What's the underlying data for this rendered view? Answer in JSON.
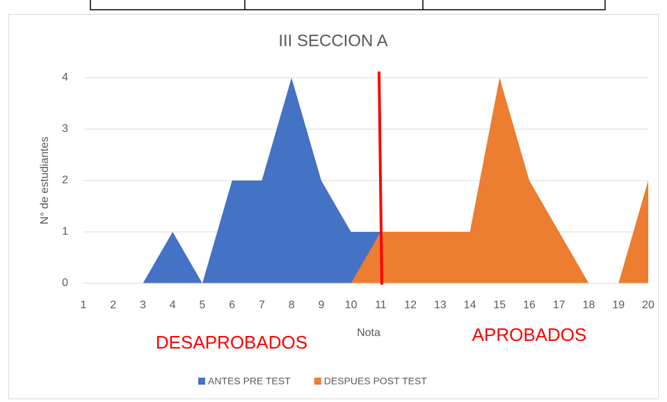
{
  "chart_data": {
    "type": "area",
    "title": "III SECCION A",
    "x_label": "Nota",
    "y_label": "N° de estudiantes",
    "categories": [
      1,
      2,
      3,
      4,
      5,
      6,
      7,
      8,
      9,
      10,
      11,
      12,
      13,
      14,
      15,
      16,
      17,
      18,
      19,
      20
    ],
    "series": [
      {
        "name": "ANTES PRE TEST",
        "color": "#4472c4",
        "values": [
          0,
          0,
          0,
          1,
          0,
          2,
          2,
          4,
          2,
          1,
          1,
          0,
          0,
          0,
          0,
          0,
          0,
          0,
          0,
          0
        ]
      },
      {
        "name": "DESPUES POST TEST",
        "color": "#ed7d31",
        "values": [
          0,
          0,
          0,
          0,
          0,
          0,
          0,
          0,
          0,
          0,
          1,
          1,
          1,
          1,
          4,
          2,
          1,
          0,
          0,
          2
        ]
      }
    ],
    "ylim": [
      0,
      4
    ],
    "yticks": [
      0,
      1,
      2,
      3,
      4
    ],
    "grid": true,
    "legend": "bottom",
    "annotations": [
      "DESAPROBADOS",
      "APROBADOS"
    ]
  }
}
